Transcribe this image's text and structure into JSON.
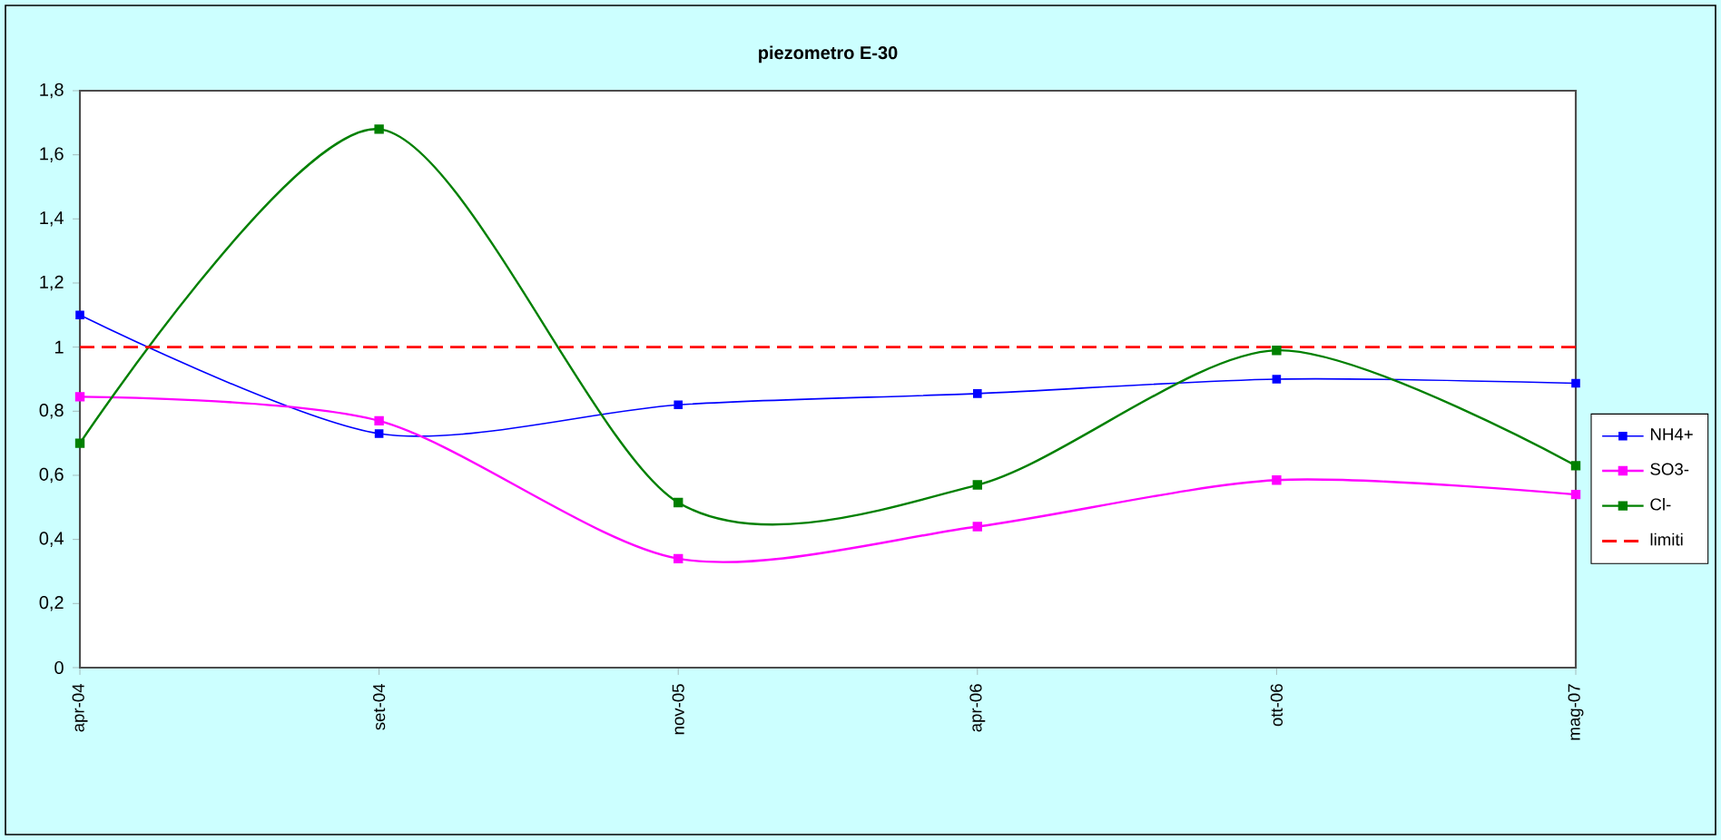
{
  "chart_data": {
    "type": "line",
    "title": "piezometro E-30",
    "categories": [
      "apr-04",
      "set-04",
      "nov-05",
      "apr-06",
      "ott-06",
      "mag-07"
    ],
    "series": [
      {
        "name": "NH4+",
        "color": "#0000ff",
        "values": [
          1.1,
          0.73,
          0.82,
          0.855,
          0.9,
          0.887
        ]
      },
      {
        "name": "SO3-",
        "color": "#ff00ff",
        "values": [
          0.845,
          0.77,
          0.34,
          0.44,
          0.585,
          0.54
        ]
      },
      {
        "name": "Cl-",
        "color": "#008000",
        "values": [
          0.7,
          1.68,
          0.515,
          0.57,
          0.99,
          0.63
        ]
      }
    ],
    "ref_lines": [
      {
        "axis": "y",
        "value": 1,
        "label": "limiti",
        "color": "#ff0000",
        "line_style": "dashed"
      }
    ],
    "ylim": [
      0,
      1.8
    ],
    "yticks": [
      0,
      {
        "value": 0.2,
        "label": "0,2"
      },
      {
        "value": 0.4,
        "label": "0,4"
      },
      {
        "value": 0.6,
        "label": "0,6"
      },
      {
        "value": 0.8,
        "label": "0,8"
      },
      1,
      {
        "value": 1.2,
        "label": "1,2"
      },
      {
        "value": 1.4,
        "label": "1,4"
      },
      {
        "value": 1.6,
        "label": "1,6"
      },
      {
        "value": 1.8,
        "label": "1,8"
      }
    ],
    "marker": "square",
    "line_style": "solid",
    "grid": false,
    "legend": "right"
  }
}
